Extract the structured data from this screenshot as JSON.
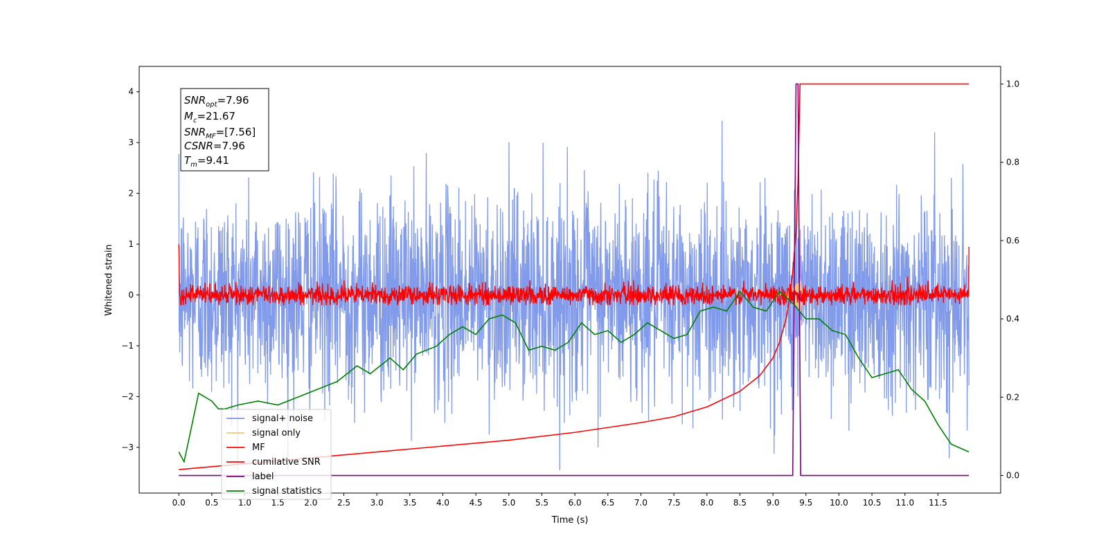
{
  "chart_data": {
    "type": "line",
    "xlabel": "Time (s)",
    "ylabel": "Whitened strain",
    "xlim": [
      -0.6,
      12.45
    ],
    "ylim": [
      -3.9,
      4.5
    ],
    "y2lim": [
      -0.045,
      1.045
    ],
    "xticks": [
      "0.0",
      "0.5",
      "1.0",
      "1.5",
      "2.0",
      "2.5",
      "3.0",
      "3.5",
      "4.0",
      "4.5",
      "5.0",
      "5.5",
      "6.0",
      "6.5",
      "7.0",
      "7.5",
      "8.0",
      "8.5",
      "9.0",
      "9.5",
      "10.0",
      "10.5",
      "11.0",
      "11.5"
    ],
    "yticks": [
      "4",
      "3",
      "2",
      "1",
      "0",
      "−1",
      "−2",
      "−3"
    ],
    "y2ticks": [
      "1.0",
      "0.8",
      "0.6",
      "0.4",
      "0.2",
      "0.0"
    ],
    "grid": false,
    "legend_position": "lower-left",
    "annotation": {
      "snr_opt": {
        "sym": "SNR",
        "sub": "opt",
        "val": "=7.96"
      },
      "mc": {
        "sym": "M",
        "sub": "c",
        "val": "=21.67"
      },
      "snr_mf": {
        "sym": "SNR",
        "sub": "MF",
        "val": "=[7.56]"
      },
      "csnr": {
        "sym": "CSNR",
        "sub": "",
        "val": "=7.96"
      },
      "tm": {
        "sym": "T",
        "sub": "m",
        "val": "=9.41"
      }
    },
    "legend": [
      {
        "label": "signal+ noise",
        "color": "#7a95e8"
      },
      {
        "label": "signal only",
        "color": "#f5c77a"
      },
      {
        "label": "MF",
        "color": "#ff0000"
      },
      {
        "label": "cumilative SNR",
        "color": "#ff0000"
      },
      {
        "label": "label",
        "color": "#800080"
      },
      {
        "label": "signal statistics",
        "color": "#008000"
      }
    ],
    "series": [
      {
        "name": "signal+ noise",
        "axis": "left",
        "color": "#7a95e8",
        "description": "white noise ~ N(0,1) sampled densely over 0-12 s",
        "x_range": [
          0.0,
          11.97
        ],
        "sigma": 1.0,
        "y_extremes": [
          -3.45,
          3.7
        ]
      },
      {
        "name": "signal only",
        "axis": "left",
        "color": "#f5c77a",
        "description": "chirp growing to ~0.5 amplitude near merger",
        "x_range": [
          9.0,
          9.45
        ],
        "peak_amplitude": 0.45
      },
      {
        "name": "MF",
        "axis": "left",
        "color": "#ff0000",
        "description": "matched filter output, low-amplitude noise around 0",
        "x_range": [
          0.0,
          11.97
        ],
        "baseline": 0.0,
        "spread": 0.2
      },
      {
        "name": "cumilative SNR",
        "axis": "right",
        "color": "#ff0000",
        "x": [
          0.0,
          1.0,
          2.0,
          3.0,
          4.0,
          5.0,
          6.0,
          7.0,
          7.5,
          8.0,
          8.5,
          8.8,
          9.0,
          9.1,
          9.2,
          9.25,
          9.3,
          9.35,
          9.38,
          9.41,
          9.45,
          11.97
        ],
        "values": [
          0.015,
          0.03,
          0.045,
          0.06,
          0.075,
          0.09,
          0.11,
          0.135,
          0.15,
          0.175,
          0.215,
          0.255,
          0.3,
          0.34,
          0.4,
          0.45,
          0.52,
          0.62,
          0.75,
          1.0,
          1.0,
          1.0
        ]
      },
      {
        "name": "label",
        "axis": "right",
        "color": "#800080",
        "x": [
          0.0,
          9.3,
          9.35,
          9.38,
          9.42,
          9.45,
          11.97
        ],
        "values": [
          0.0,
          0.0,
          1.0,
          1.0,
          0.0,
          0.0,
          0.0
        ]
      },
      {
        "name": "signal statistics",
        "axis": "right",
        "color": "#008000",
        "x": [
          0.0,
          0.08,
          0.2,
          0.3,
          0.4,
          0.5,
          0.6,
          0.7,
          0.9,
          1.2,
          1.5,
          1.8,
          2.1,
          2.4,
          2.7,
          2.9,
          3.2,
          3.4,
          3.6,
          3.9,
          4.1,
          4.3,
          4.5,
          4.7,
          4.9,
          5.1,
          5.3,
          5.5,
          5.7,
          5.9,
          6.1,
          6.3,
          6.5,
          6.7,
          6.9,
          7.1,
          7.3,
          7.5,
          7.7,
          7.9,
          8.1,
          8.3,
          8.5,
          8.7,
          8.9,
          9.1,
          9.3,
          9.5,
          9.7,
          9.9,
          10.1,
          10.3,
          10.5,
          10.7,
          10.9,
          11.1,
          11.3,
          11.5,
          11.7,
          11.97
        ],
        "values": [
          0.06,
          0.035,
          0.13,
          0.21,
          0.2,
          0.19,
          0.17,
          0.17,
          0.18,
          0.19,
          0.18,
          0.2,
          0.22,
          0.24,
          0.28,
          0.26,
          0.3,
          0.27,
          0.31,
          0.33,
          0.36,
          0.38,
          0.36,
          0.4,
          0.41,
          0.39,
          0.32,
          0.33,
          0.32,
          0.34,
          0.39,
          0.36,
          0.37,
          0.34,
          0.36,
          0.39,
          0.37,
          0.35,
          0.36,
          0.42,
          0.43,
          0.42,
          0.47,
          0.43,
          0.42,
          0.47,
          0.44,
          0.4,
          0.4,
          0.37,
          0.36,
          0.3,
          0.25,
          0.26,
          0.27,
          0.22,
          0.19,
          0.13,
          0.08,
          0.06
        ]
      }
    ]
  }
}
